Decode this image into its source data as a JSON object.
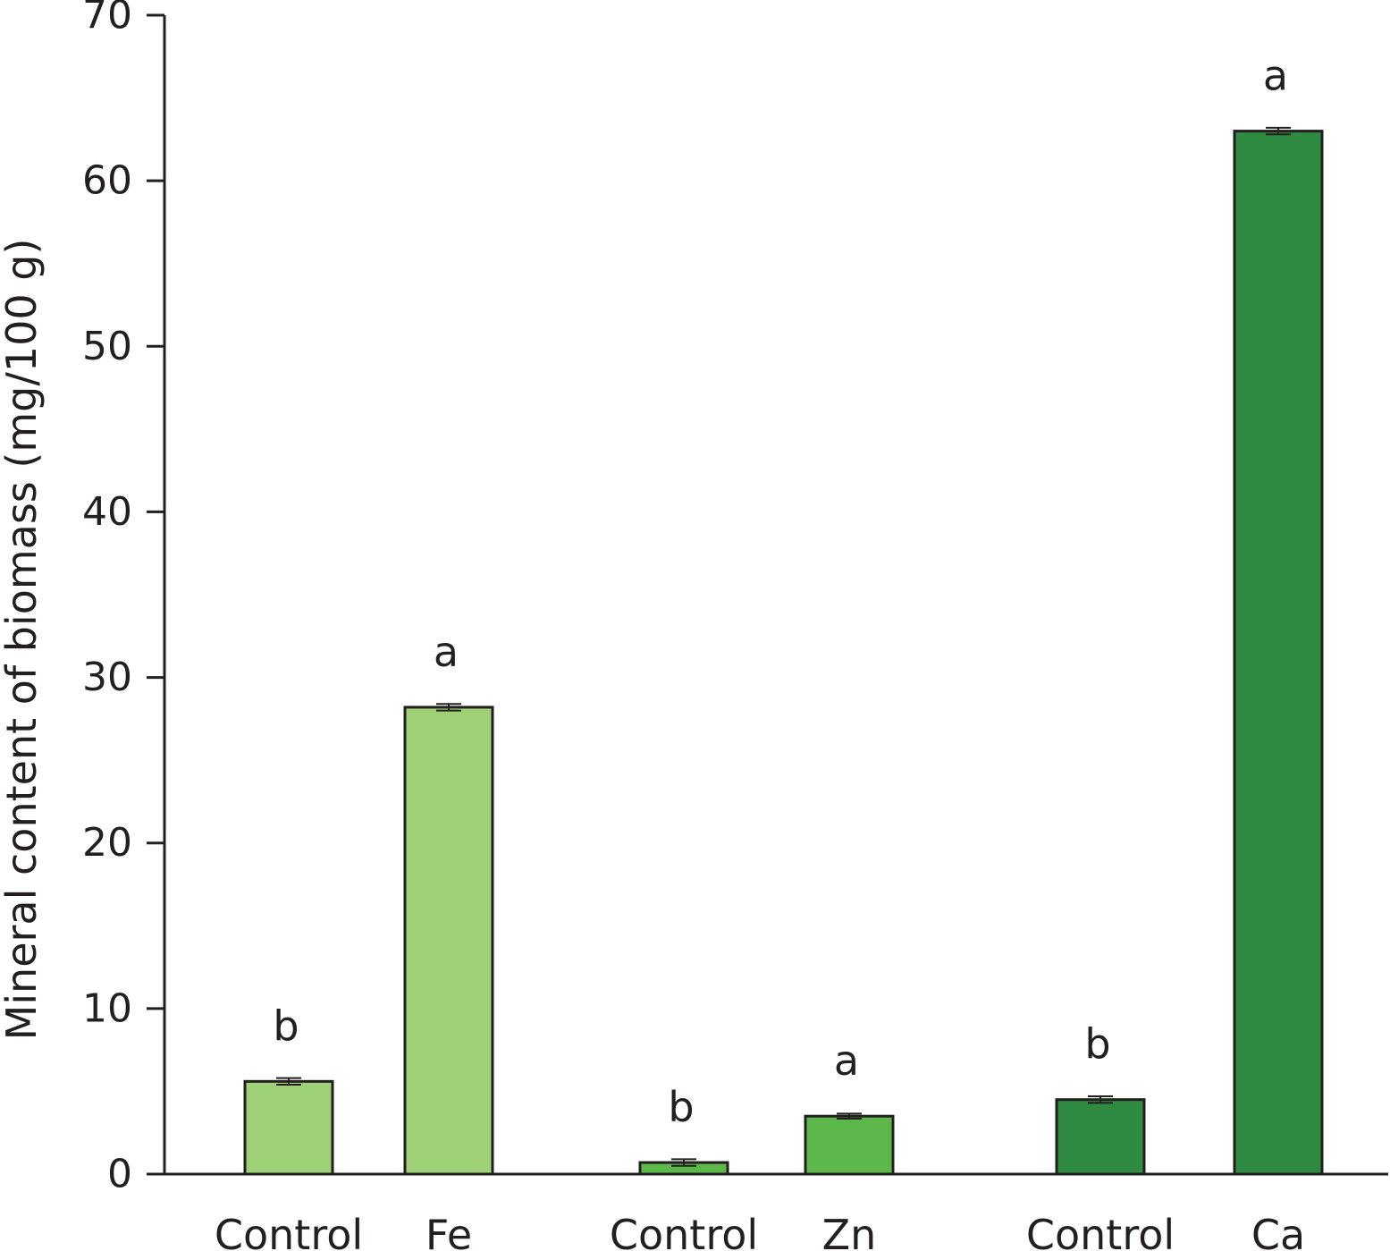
{
  "chart_data": {
    "type": "bar",
    "title": "",
    "xlabel": "",
    "ylabel": "Mineral content of biomass (mg/100 g)",
    "ylim": [
      0,
      70
    ],
    "yticks": [
      0,
      10,
      20,
      30,
      40,
      50,
      60,
      70
    ],
    "grid": false,
    "legend": "none",
    "categories": [
      "Control",
      "Fe",
      "Control",
      "Zn",
      "Control",
      "Ca"
    ],
    "groups": [
      "Fe",
      "Fe",
      "Zn",
      "Zn",
      "Ca",
      "Ca"
    ],
    "values": [
      5.6,
      28.2,
      0.7,
      3.5,
      4.5,
      63.0
    ],
    "errors": [
      0.2,
      0.2,
      0.2,
      0.15,
      0.2,
      0.2
    ],
    "significance": [
      "b",
      "a",
      "b",
      "a",
      "b",
      "a"
    ],
    "colors": [
      "#9ed076",
      "#9ed076",
      "#5cb84b",
      "#5cb84b",
      "#2e8b41",
      "#2e8b41"
    ],
    "axis_color": "#231f20"
  }
}
